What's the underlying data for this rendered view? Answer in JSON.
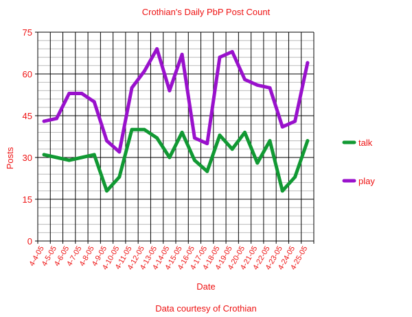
{
  "chart_data": {
    "type": "line",
    "title": "Crothian's Daily PbP Post Count",
    "xlabel": "Date",
    "ylabel": "Posts",
    "footer": "Data courtesy of Crothian",
    "ylim": [
      0,
      75
    ],
    "yticks": [
      0,
      15,
      30,
      45,
      60,
      75
    ],
    "grid": true,
    "legend_position": "right",
    "categories": [
      "4-4-05",
      "4-5-05",
      "4-6-05",
      "4-7-05",
      "4-8-05",
      "4-9-05",
      "4-10-05",
      "4-11-05",
      "4-12-05",
      "4-13-05",
      "4-14-05",
      "4-15-05",
      "4-16-05",
      "4-17-05",
      "4-18-05",
      "4-19-05",
      "4-20-05",
      "4-21-05",
      "4-22-05",
      "4-23-05",
      "4-24-05",
      "4-25-05"
    ],
    "series": [
      {
        "name": "talk",
        "color": "#119933",
        "values": [
          31,
          30,
          29,
          30,
          31,
          18,
          23,
          40,
          40,
          37,
          30,
          39,
          29,
          25,
          38,
          33,
          39,
          28,
          36,
          18,
          23,
          36
        ]
      },
      {
        "name": "play",
        "color": "#9911cc",
        "values": [
          43,
          44,
          53,
          53,
          50,
          36,
          32,
          55,
          61,
          69,
          54,
          67,
          37,
          35,
          66,
          68,
          58,
          56,
          55,
          41,
          43,
          64
        ]
      }
    ],
    "text_color": "#ee1111"
  }
}
